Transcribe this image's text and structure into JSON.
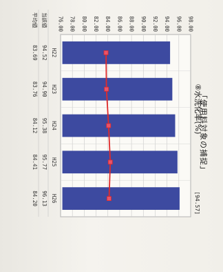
{
  "chart_data": {
    "type": "bar",
    "title": "⑧水洗化率(%)",
    "annotation": "[94.57]",
    "categories": [
      "H22",
      "H23",
      "H24",
      "H25",
      "H26"
    ],
    "series": [
      {
        "name": "当該値",
        "values": [
          94.52,
          94.9,
          95.38,
          95.77,
          96.13
        ],
        "color": "#3d4aa0"
      },
      {
        "name": "平均値",
        "values": [
          83.69,
          83.76,
          84.12,
          84.41,
          84.2
        ],
        "color": "#e02a2a"
      }
    ],
    "value_labels": {
      "current": [
        "94.52",
        "94.90",
        "95.38",
        "95.77",
        "96.13"
      ],
      "average": [
        "83.69",
        "83.76",
        "84.12",
        "84.41",
        "84.20"
      ]
    },
    "yticks": [
      "76.00",
      "78.00",
      "80.00",
      "82.00",
      "84.00",
      "86.00",
      "88.00",
      "90.00",
      "92.00",
      "94.00",
      "96.00",
      "98.00"
    ],
    "ylim": [
      76,
      98
    ],
    "grid": true
  },
  "caption": "「使用料対象の捕捉」"
}
